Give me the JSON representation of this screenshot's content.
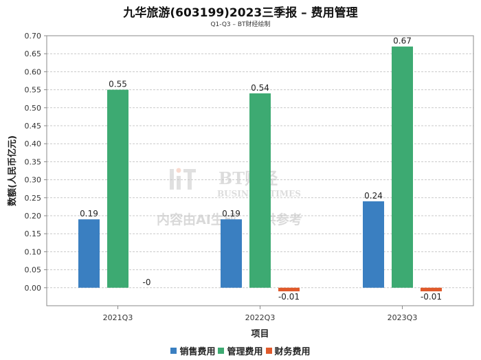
{
  "title": "九华旅游(603199)2023三季报 – 费用管理",
  "subtitle": "Q1-Q3 – BT财经绘制",
  "watermark": {
    "brand": "BT财经",
    "brand_en": "BUSINESS TIMES",
    "notice": "内容由AI生成，仅供参考"
  },
  "colors": {
    "销售费用": "#3a7fc1",
    "管理费用": "#3daa72",
    "财务费用": "#e05a2b",
    "grid": "#c8c8c8",
    "axis": "#888888"
  },
  "chart_data": {
    "type": "bar",
    "title": "九华旅游(603199)2023三季报 – 费用管理",
    "subtitle": "Q1-Q3 – BT财经绘制",
    "xlabel": "项目",
    "ylabel": "数额(人民币亿元)",
    "categories": [
      "2021Q3",
      "2022Q3",
      "2023Q3"
    ],
    "series": [
      {
        "name": "销售费用",
        "values": [
          0.19,
          0.19,
          0.24
        ],
        "labels": [
          "0.19",
          "0.19",
          "0.24"
        ]
      },
      {
        "name": "管理费用",
        "values": [
          0.55,
          0.54,
          0.67
        ],
        "labels": [
          "0.55",
          "0.54",
          "0.67"
        ]
      },
      {
        "name": "财务费用",
        "values": [
          0.0,
          -0.01,
          -0.01
        ],
        "labels": [
          "-0",
          "-0.01",
          "-0.01"
        ]
      }
    ],
    "ylim": [
      -0.05,
      0.7
    ],
    "yticks": [
      "0.00",
      "0.05",
      "0.10",
      "0.15",
      "0.20",
      "0.25",
      "0.30",
      "0.35",
      "0.40",
      "0.45",
      "0.50",
      "0.55",
      "0.60",
      "0.65",
      "0.70"
    ],
    "grid": true,
    "legend": "bottom-center"
  }
}
